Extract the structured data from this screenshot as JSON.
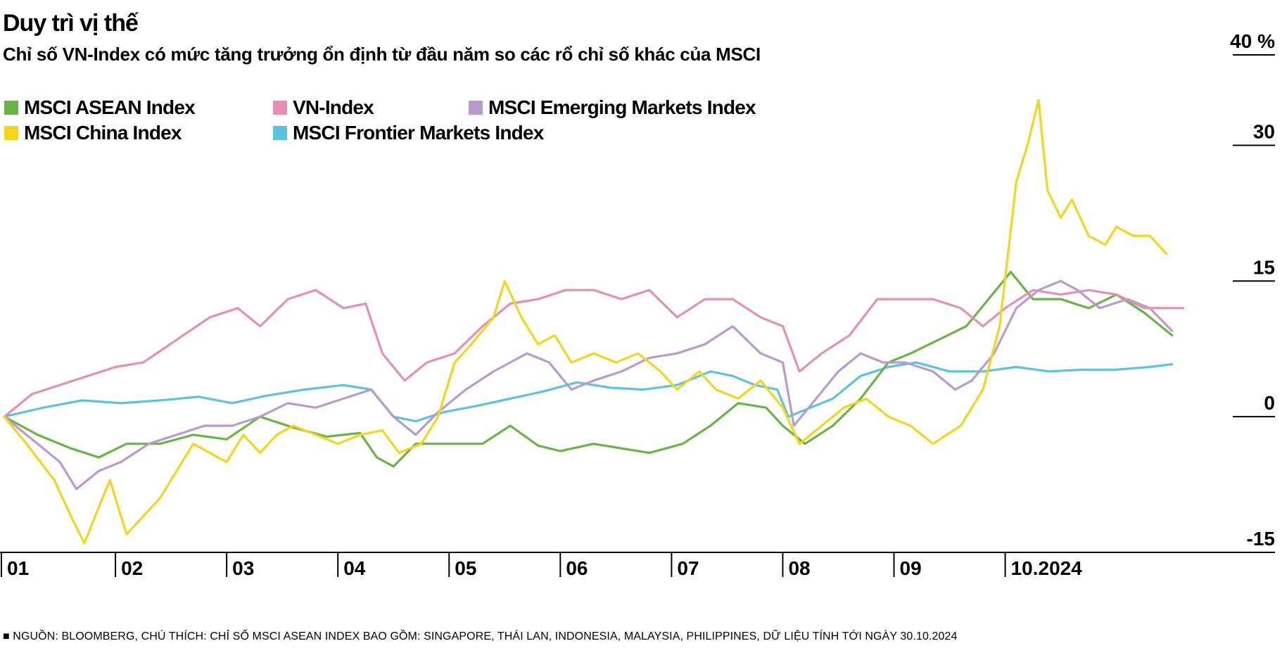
{
  "title": "Duy trì vị thế",
  "subtitle": "Chỉ số VN-Index có mức tăng trưởng ổn định từ đầu năm so các rổ chỉ số khác của MSCI",
  "footnote": "■ NGUỒN: BLOOMBERG, CHÚ THÍCH: CHỈ SỐ MSCI ASEAN INDEX BAO GỒM: SINGAPORE, THÁI LAN, INDONESIA, MALAYSIA, PHILIPPINES, DỮ LIỆU TÍNH TỚI NGÀY 30.10.2024",
  "chart_data": {
    "type": "line",
    "title": "Duy trì vị thế",
    "subtitle": "Chỉ số VN-Index có mức tăng trưởng ổn định từ đầu năm so các rổ chỉ số khác của MSCI",
    "xlabel": "",
    "ylabel": "%",
    "ylim": [
      -15,
      40
    ],
    "x_range": [
      0,
      10.97
    ],
    "grid": false,
    "y_axis_side": "right",
    "legend_position": "top-left",
    "y_ticks": [
      {
        "value": 40,
        "label": "40 %"
      },
      {
        "value": 30,
        "label": "30"
      },
      {
        "value": 15,
        "label": "15"
      },
      {
        "value": 0,
        "label": "0"
      },
      {
        "value": -15,
        "label": "-15"
      }
    ],
    "x_ticks": [
      {
        "value": 0,
        "label": "01"
      },
      {
        "value": 1,
        "label": "02"
      },
      {
        "value": 2,
        "label": "03"
      },
      {
        "value": 3,
        "label": "04"
      },
      {
        "value": 4,
        "label": "05"
      },
      {
        "value": 5,
        "label": "06"
      },
      {
        "value": 6,
        "label": "07"
      },
      {
        "value": 7,
        "label": "08"
      },
      {
        "value": 8,
        "label": "09"
      },
      {
        "value": 9,
        "label": "10.2024"
      }
    ],
    "series": [
      {
        "name": "MSCI ASEAN Index",
        "color": "#6ab345",
        "points": [
          [
            0,
            0
          ],
          [
            0.3,
            -2
          ],
          [
            0.6,
            -3.5
          ],
          [
            0.85,
            -4.5
          ],
          [
            1.1,
            -3
          ],
          [
            1.4,
            -3
          ],
          [
            1.7,
            -2
          ],
          [
            2.0,
            -2.5
          ],
          [
            2.3,
            0
          ],
          [
            2.6,
            -1.2
          ],
          [
            2.9,
            -2.2
          ],
          [
            3.2,
            -1.8
          ],
          [
            3.35,
            -4.5
          ],
          [
            3.5,
            -5.5
          ],
          [
            3.7,
            -3
          ],
          [
            4.0,
            -3
          ],
          [
            4.3,
            -3
          ],
          [
            4.55,
            -1
          ],
          [
            4.8,
            -3.2
          ],
          [
            5.0,
            -3.8
          ],
          [
            5.3,
            -3
          ],
          [
            5.55,
            -3.5
          ],
          [
            5.8,
            -4
          ],
          [
            6.1,
            -3
          ],
          [
            6.35,
            -1
          ],
          [
            6.6,
            1.5
          ],
          [
            6.85,
            1
          ],
          [
            7.0,
            -1
          ],
          [
            7.2,
            -3
          ],
          [
            7.45,
            -1
          ],
          [
            7.7,
            2
          ],
          [
            7.95,
            6
          ],
          [
            8.15,
            7
          ],
          [
            8.4,
            8.5
          ],
          [
            8.65,
            10
          ],
          [
            8.85,
            13
          ],
          [
            9.05,
            16
          ],
          [
            9.25,
            13
          ],
          [
            9.5,
            13
          ],
          [
            9.75,
            12
          ],
          [
            10.0,
            13.5
          ],
          [
            10.25,
            11.5
          ],
          [
            10.5,
            9
          ]
        ]
      },
      {
        "name": "VN-Index",
        "color": "#e58fb5",
        "points": [
          [
            0,
            0
          ],
          [
            0.25,
            2.5
          ],
          [
            0.5,
            3.5
          ],
          [
            0.75,
            4.5
          ],
          [
            1.0,
            5.5
          ],
          [
            1.25,
            6
          ],
          [
            1.55,
            8.5
          ],
          [
            1.85,
            11
          ],
          [
            2.1,
            12
          ],
          [
            2.3,
            10
          ],
          [
            2.55,
            13
          ],
          [
            2.8,
            14
          ],
          [
            3.05,
            12
          ],
          [
            3.25,
            12.5
          ],
          [
            3.4,
            7
          ],
          [
            3.6,
            4
          ],
          [
            3.8,
            6
          ],
          [
            4.05,
            7
          ],
          [
            4.3,
            10
          ],
          [
            4.55,
            12.5
          ],
          [
            4.8,
            13
          ],
          [
            5.05,
            14
          ],
          [
            5.3,
            14
          ],
          [
            5.55,
            13
          ],
          [
            5.8,
            14
          ],
          [
            6.05,
            11
          ],
          [
            6.3,
            13
          ],
          [
            6.55,
            13
          ],
          [
            6.8,
            11
          ],
          [
            7.0,
            10
          ],
          [
            7.15,
            5
          ],
          [
            7.35,
            7
          ],
          [
            7.6,
            9
          ],
          [
            7.85,
            13
          ],
          [
            8.1,
            13
          ],
          [
            8.35,
            13
          ],
          [
            8.6,
            12
          ],
          [
            8.8,
            10
          ],
          [
            9.0,
            12
          ],
          [
            9.25,
            14
          ],
          [
            9.5,
            13.5
          ],
          [
            9.75,
            14
          ],
          [
            10.0,
            13.5
          ],
          [
            10.25,
            12
          ],
          [
            10.5,
            12
          ],
          [
            10.6,
            12
          ]
        ]
      },
      {
        "name": "MSCI Emerging Markets Index",
        "color": "#b89acc",
        "points": [
          [
            0,
            0
          ],
          [
            0.25,
            -2.5
          ],
          [
            0.5,
            -5
          ],
          [
            0.65,
            -8
          ],
          [
            0.85,
            -6
          ],
          [
            1.05,
            -5
          ],
          [
            1.3,
            -3
          ],
          [
            1.55,
            -2
          ],
          [
            1.8,
            -1
          ],
          [
            2.05,
            -1
          ],
          [
            2.3,
            0
          ],
          [
            2.55,
            1.5
          ],
          [
            2.8,
            1
          ],
          [
            3.05,
            2
          ],
          [
            3.3,
            3
          ],
          [
            3.5,
            0
          ],
          [
            3.7,
            -2
          ],
          [
            3.9,
            0.5
          ],
          [
            4.15,
            3
          ],
          [
            4.4,
            5
          ],
          [
            4.7,
            7
          ],
          [
            4.9,
            6
          ],
          [
            5.1,
            3
          ],
          [
            5.3,
            4
          ],
          [
            5.55,
            5
          ],
          [
            5.8,
            6.5
          ],
          [
            6.05,
            7
          ],
          [
            6.3,
            8
          ],
          [
            6.55,
            10
          ],
          [
            6.8,
            7
          ],
          [
            7.0,
            6
          ],
          [
            7.1,
            -1
          ],
          [
            7.3,
            2
          ],
          [
            7.5,
            5
          ],
          [
            7.7,
            7
          ],
          [
            7.9,
            6
          ],
          [
            8.1,
            6
          ],
          [
            8.35,
            5
          ],
          [
            8.55,
            3
          ],
          [
            8.7,
            4
          ],
          [
            8.9,
            7
          ],
          [
            9.1,
            12
          ],
          [
            9.3,
            14
          ],
          [
            9.5,
            15
          ],
          [
            9.65,
            14
          ],
          [
            9.85,
            12
          ],
          [
            10.1,
            13
          ],
          [
            10.3,
            12
          ],
          [
            10.5,
            9.5
          ]
        ]
      },
      {
        "name": "MSCI China Index",
        "color": "#f2d51d",
        "points": [
          [
            0,
            0
          ],
          [
            0.2,
            -3
          ],
          [
            0.45,
            -7
          ],
          [
            0.6,
            -11
          ],
          [
            0.72,
            -14
          ],
          [
            0.85,
            -10
          ],
          [
            0.95,
            -7
          ],
          [
            1.1,
            -13
          ],
          [
            1.25,
            -11
          ],
          [
            1.4,
            -9
          ],
          [
            1.55,
            -6
          ],
          [
            1.7,
            -3
          ],
          [
            1.85,
            -4
          ],
          [
            2.0,
            -5
          ],
          [
            2.15,
            -2
          ],
          [
            2.3,
            -4
          ],
          [
            2.45,
            -2
          ],
          [
            2.6,
            -1
          ],
          [
            2.8,
            -2
          ],
          [
            3.0,
            -3
          ],
          [
            3.2,
            -2
          ],
          [
            3.4,
            -1.5
          ],
          [
            3.55,
            -4
          ],
          [
            3.75,
            -3
          ],
          [
            3.9,
            0
          ],
          [
            4.05,
            6
          ],
          [
            4.2,
            8
          ],
          [
            4.4,
            11
          ],
          [
            4.5,
            15
          ],
          [
            4.65,
            11
          ],
          [
            4.8,
            8
          ],
          [
            4.95,
            9
          ],
          [
            5.1,
            6
          ],
          [
            5.3,
            7
          ],
          [
            5.5,
            6
          ],
          [
            5.7,
            7
          ],
          [
            5.9,
            5
          ],
          [
            6.05,
            3
          ],
          [
            6.25,
            5
          ],
          [
            6.4,
            3
          ],
          [
            6.6,
            2
          ],
          [
            6.8,
            4
          ],
          [
            7.0,
            1
          ],
          [
            7.15,
            -3
          ],
          [
            7.35,
            -1
          ],
          [
            7.55,
            1
          ],
          [
            7.75,
            2
          ],
          [
            7.95,
            0
          ],
          [
            8.15,
            -1
          ],
          [
            8.35,
            -3
          ],
          [
            8.6,
            -1
          ],
          [
            8.8,
            3
          ],
          [
            8.95,
            10
          ],
          [
            9.1,
            26
          ],
          [
            9.2,
            30
          ],
          [
            9.3,
            35
          ],
          [
            9.38,
            25
          ],
          [
            9.5,
            22
          ],
          [
            9.6,
            24
          ],
          [
            9.75,
            20
          ],
          [
            9.9,
            19
          ],
          [
            10.0,
            21
          ],
          [
            10.15,
            20
          ],
          [
            10.3,
            20
          ],
          [
            10.45,
            18
          ]
        ]
      },
      {
        "name": "MSCI Frontier Markets Index",
        "color": "#5cc3dc",
        "points": [
          [
            0,
            0
          ],
          [
            0.35,
            1
          ],
          [
            0.7,
            1.8
          ],
          [
            1.05,
            1.5
          ],
          [
            1.4,
            1.8
          ],
          [
            1.75,
            2.2
          ],
          [
            2.05,
            1.5
          ],
          [
            2.35,
            2.3
          ],
          [
            2.7,
            3
          ],
          [
            3.05,
            3.5
          ],
          [
            3.3,
            3
          ],
          [
            3.5,
            0
          ],
          [
            3.7,
            -0.5
          ],
          [
            3.95,
            0.5
          ],
          [
            4.25,
            1.2
          ],
          [
            4.55,
            2
          ],
          [
            4.85,
            2.8
          ],
          [
            5.15,
            3.8
          ],
          [
            5.45,
            3.2
          ],
          [
            5.75,
            3
          ],
          [
            6.05,
            3.5
          ],
          [
            6.35,
            5
          ],
          [
            6.55,
            4.5
          ],
          [
            6.75,
            3.5
          ],
          [
            6.95,
            3
          ],
          [
            7.05,
            0
          ],
          [
            7.25,
            1
          ],
          [
            7.45,
            2
          ],
          [
            7.7,
            4.5
          ],
          [
            7.95,
            5.5
          ],
          [
            8.2,
            6
          ],
          [
            8.5,
            5
          ],
          [
            8.8,
            5
          ],
          [
            9.1,
            5.5
          ],
          [
            9.4,
            5
          ],
          [
            9.7,
            5.2
          ],
          [
            10.0,
            5.2
          ],
          [
            10.3,
            5.5
          ],
          [
            10.5,
            5.8
          ]
        ]
      }
    ]
  }
}
